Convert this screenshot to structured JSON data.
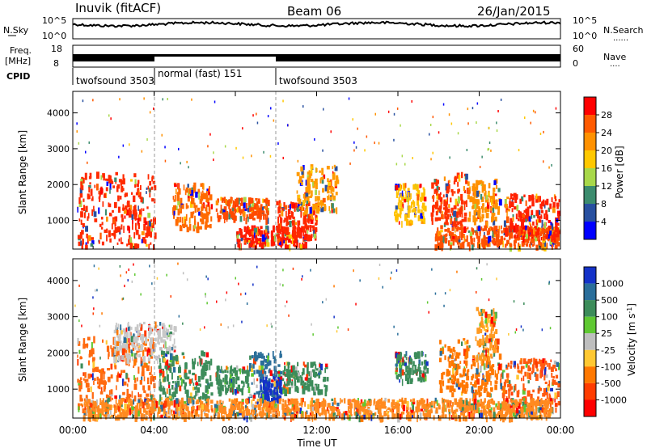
{
  "header": {
    "title": "Inuvik (fitACF)",
    "beam": "Beam 06",
    "date": "26/Jan/2015"
  },
  "sky_panel": {
    "left_label": "N.Sky",
    "right_label": "N.Search",
    "right_label_dots": "......",
    "left_ticks": [
      "10^5",
      "10^0"
    ],
    "right_ticks": [
      "10^5",
      "10^0"
    ]
  },
  "freq_panel": {
    "left_label_line1": "Freq.",
    "left_label_line2": "[MHz]",
    "right_label": "Nave",
    "right_label_dots": "....",
    "left_ticks": [
      "18",
      "8"
    ],
    "right_ticks": [
      "60",
      "0"
    ]
  },
  "cpid_panel": {
    "label": "CPID",
    "segments": [
      {
        "start_hour": 0,
        "end_hour": 4,
        "text": "twofsound 3503"
      },
      {
        "start_hour": 4,
        "end_hour": 10,
        "text": "normal (fast) 151"
      },
      {
        "start_hour": 10,
        "end_hour": 24,
        "text": "twofsound 3503"
      }
    ]
  },
  "chart_data": [
    {
      "type": "heatmap",
      "name": "power",
      "ylabel": "Slant Range [km]",
      "ylim": [
        200,
        4600
      ],
      "yticks": [
        "1000",
        "2000",
        "3000",
        "4000"
      ],
      "xlim": [
        0,
        24
      ],
      "colorbar": {
        "label": "Power [dB]",
        "ticks": [
          "28",
          "24",
          "20",
          "16",
          "12",
          "8",
          "4"
        ],
        "colors": [
          "#ff0000",
          "#ff5a00",
          "#ff9100",
          "#ffc800",
          "#a8d84a",
          "#3c8c6e",
          "#2850a0",
          "#0000ff"
        ]
      },
      "regions": [
        {
          "t0": 0.2,
          "t1": 4.0,
          "r0": 250,
          "r1": 2300,
          "core": "#ff2a00"
        },
        {
          "t0": 4.9,
          "t1": 6.8,
          "r0": 700,
          "r1": 2000,
          "core": "#ff6a00"
        },
        {
          "t0": 7.0,
          "t1": 9.6,
          "r0": 1000,
          "r1": 1600,
          "core": "#ff4a00"
        },
        {
          "t0": 8.0,
          "t1": 11.5,
          "r0": 250,
          "r1": 800,
          "core": "#ff1a00"
        },
        {
          "t0": 10.0,
          "t1": 12.0,
          "r0": 500,
          "r1": 1500,
          "core": "#ff2800"
        },
        {
          "t0": 11.0,
          "t1": 13.0,
          "r0": 1200,
          "r1": 2500,
          "core": "#ff9a00"
        },
        {
          "t0": 15.8,
          "t1": 17.3,
          "r0": 900,
          "r1": 2000,
          "core": "#ffc000"
        },
        {
          "t0": 17.6,
          "t1": 19.4,
          "r0": 800,
          "r1": 2300,
          "core": "#ff3000"
        },
        {
          "t0": 19.4,
          "t1": 21.0,
          "r0": 900,
          "r1": 2100,
          "core": "#ff9000"
        },
        {
          "t0": 17.8,
          "t1": 23.9,
          "r0": 250,
          "r1": 800,
          "core": "#ff5000"
        },
        {
          "t0": 21.2,
          "t1": 23.9,
          "r0": 500,
          "r1": 1700,
          "core": "#ff2000"
        }
      ]
    },
    {
      "type": "heatmap",
      "name": "velocity",
      "ylabel": "Slant Range [km]",
      "xlabel": "Time UT",
      "ylim": [
        200,
        4600
      ],
      "yticks": [
        "1000",
        "2000",
        "3000",
        "4000"
      ],
      "xlim": [
        0,
        24
      ],
      "xticks": [
        "00:00",
        "04:00",
        "08:00",
        "12:00",
        "16:00",
        "20:00",
        "00:00"
      ],
      "colorbar": {
        "label": "Velocity [m s^-1]",
        "ticks": [
          "1000",
          "500",
          "100",
          "25",
          "-25",
          "-100",
          "-500",
          "-1000"
        ],
        "colors": [
          "#1432c8",
          "#2a6e9a",
          "#3c8c5a",
          "#5fc832",
          "#bebebe",
          "#ffc832",
          "#ff7800",
          "#ff3c00",
          "#ff0000"
        ]
      },
      "regions": [
        {
          "t0": 0.2,
          "t1": 4.0,
          "r0": 400,
          "r1": 2400,
          "core": "#ff6a10"
        },
        {
          "t0": 2.0,
          "t1": 5.0,
          "r0": 1800,
          "r1": 2800,
          "core": "#c8c8c8"
        },
        {
          "t0": 4.2,
          "t1": 6.8,
          "r0": 700,
          "r1": 2000,
          "core": "#3c8c5a"
        },
        {
          "t0": 7.0,
          "t1": 8.6,
          "r0": 900,
          "r1": 1600,
          "core": "#3c8c5a"
        },
        {
          "t0": 8.6,
          "t1": 10.2,
          "r0": 700,
          "r1": 2000,
          "core": "#2a6e9a"
        },
        {
          "t0": 9.2,
          "t1": 10.2,
          "r0": 600,
          "r1": 1300,
          "core": "#1432c8"
        },
        {
          "t0": 10.3,
          "t1": 12.5,
          "r0": 900,
          "r1": 1700,
          "core": "#3c8c5a"
        },
        {
          "t0": 15.8,
          "t1": 17.4,
          "r0": 1200,
          "r1": 2000,
          "core": "#3c8c5a"
        },
        {
          "t0": 18.0,
          "t1": 21.0,
          "r0": 800,
          "r1": 2400,
          "core": "#ff7800"
        },
        {
          "t0": 19.8,
          "t1": 20.8,
          "r0": 1800,
          "r1": 3200,
          "core": "#ff9a20"
        },
        {
          "t0": 21.0,
          "t1": 23.9,
          "r0": 400,
          "r1": 1800,
          "core": "#ff5a10"
        },
        {
          "t0": 0.5,
          "t1": 23.5,
          "r0": 200,
          "r1": 700,
          "core": "#ff8a20"
        }
      ]
    }
  ]
}
